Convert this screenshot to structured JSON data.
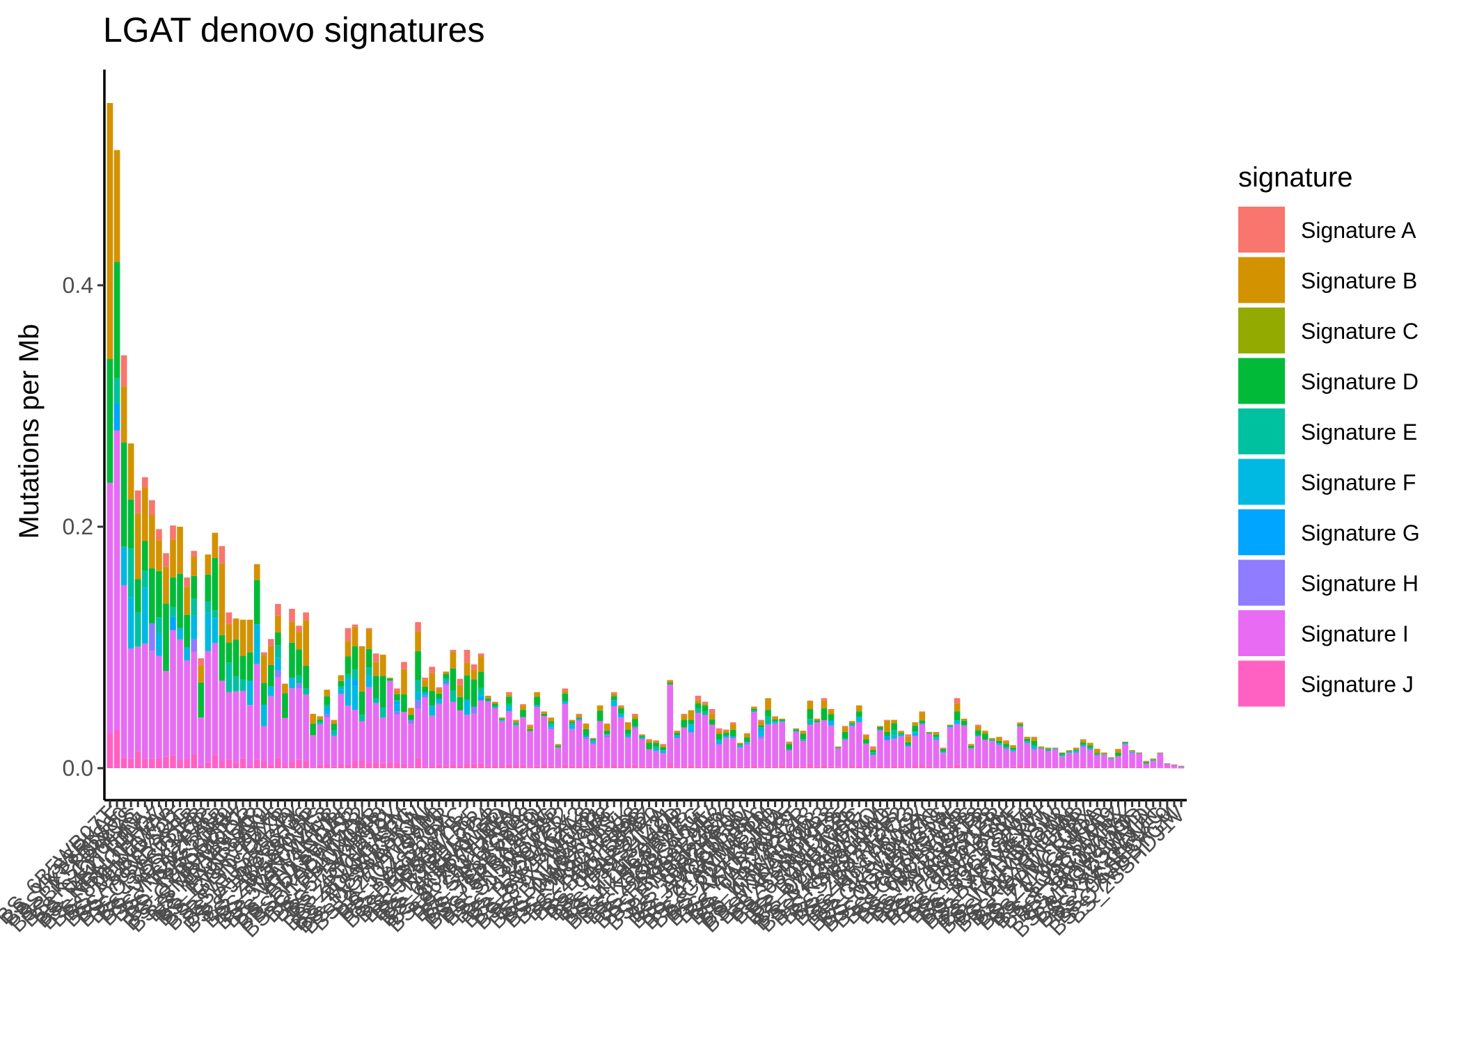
{
  "chart_data": {
    "type": "bar",
    "stacked": true,
    "title": "LGAT denovo signatures",
    "xlabel": "",
    "ylabel": "Mutations per Mb",
    "ylim": [
      -0.04,
      0.58
    ],
    "yticks": [
      0.0,
      0.2,
      0.4
    ],
    "ytick_labels": [
      "0.0",
      "0.2",
      "0.4"
    ],
    "legend_title": "signature",
    "legend_position": "right",
    "grid": false,
    "x_tick_count": 154,
    "x_tick_labels_legible": false,
    "series": [
      {
        "name": "Signature A",
        "color": "#F8766D"
      },
      {
        "name": "Signature B",
        "color": "#D39200"
      },
      {
        "name": "Signature C",
        "color": "#93AA00"
      },
      {
        "name": "Signature D",
        "color": "#00BA38"
      },
      {
        "name": "Signature E",
        "color": "#00C19F"
      },
      {
        "name": "Signature F",
        "color": "#00B9E3"
      },
      {
        "name": "Signature G",
        "color": "#00A5FF"
      },
      {
        "name": "Signature H",
        "color": "#8F7CFF"
      },
      {
        "name": "Signature I",
        "color": "#E76BF3"
      },
      {
        "name": "Signature J",
        "color": "#FF61C3"
      }
    ],
    "sample_totals": [
      0.551,
      0.512,
      0.342,
      0.269,
      0.23,
      0.241,
      0.222,
      0.198,
      0.178,
      0.201,
      0.2,
      0.158,
      0.18,
      0.091,
      0.177,
      0.195,
      0.184,
      0.129,
      0.124,
      0.123,
      0.123,
      0.169,
      0.096,
      0.107,
      0.136,
      0.07,
      0.132,
      0.118,
      0.129,
      0.045,
      0.043,
      0.065,
      0.04,
      0.077,
      0.116,
      0.119,
      0.101,
      0.116,
      0.095,
      0.094,
      0.075,
      0.066,
      0.088,
      0.05,
      0.121,
      0.075,
      0.084,
      0.067,
      0.08,
      0.098,
      0.074,
      0.098,
      0.086,
      0.095,
      0.06,
      0.055,
      0.042,
      0.063,
      0.04,
      0.053,
      0.036,
      0.063,
      0.047,
      0.042,
      0.02,
      0.066,
      0.04,
      0.045,
      0.037,
      0.025,
      0.052,
      0.037,
      0.063,
      0.052,
      0.038,
      0.045,
      0.028,
      0.024,
      0.023,
      0.02,
      0.073,
      0.031,
      0.045,
      0.048,
      0.06,
      0.055,
      0.049,
      0.033,
      0.032,
      0.038,
      0.021,
      0.029,
      0.051,
      0.04,
      0.058,
      0.043,
      0.041,
      0.022,
      0.033,
      0.031,
      0.056,
      0.041,
      0.058,
      0.049,
      0.018,
      0.035,
      0.039,
      0.052,
      0.028,
      0.018,
      0.035,
      0.04,
      0.04,
      0.031,
      0.028,
      0.038,
      0.047,
      0.03,
      0.03,
      0.017,
      0.036,
      0.058,
      0.041,
      0.02,
      0.036,
      0.031,
      0.025,
      0.026,
      0.023,
      0.019,
      0.038,
      0.026,
      0.026,
      0.018,
      0.017,
      0.017,
      0.013,
      0.015,
      0.017,
      0.024,
      0.021,
      0.016,
      0.013,
      0.009,
      0.016,
      0.022,
      0.015,
      0.013,
      0.006,
      0.008,
      0.013,
      0.004,
      0.003,
      0.002
    ]
  }
}
